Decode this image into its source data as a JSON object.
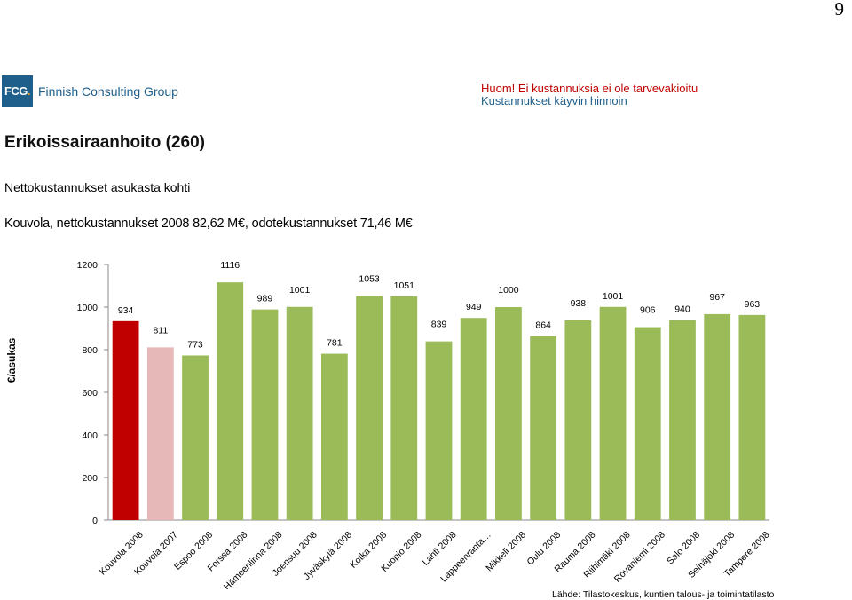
{
  "page_number": "9",
  "logo": {
    "mark": "FCG",
    "dot": ".",
    "name": "Finnish Consulting Group"
  },
  "notice": {
    "line1": "Huom! Ei kustannuksia ei ole tarvevakioitu",
    "line2": "Kustannukset käyvin hinnoin",
    "colors": {
      "line1": "#c00000",
      "line2": "#1f5f8b"
    }
  },
  "title": "Erikoissairaanhoito (260)",
  "subtitle": "Nettokustannukset asukasta kohti",
  "kouvola_line": "Kouvola, nettokustannukset 2008 82,62 M€, odotekustannukset 71,46 M€",
  "source": "Lähde: Tilastokeskus, kuntien talous- ja toimintatilasto",
  "chart_data": {
    "type": "bar",
    "ylabel": "€/asukas",
    "ylim": [
      0,
      1200
    ],
    "yticks": [
      0,
      200,
      400,
      600,
      800,
      1000,
      1200
    ],
    "grid": false,
    "categories": [
      "Kouvola 2008",
      "Kouvola 2007",
      "Espoo 2008",
      "Forssa 2008",
      "Hämeenlinna 2008",
      "Joensuu 2008",
      "Jyväskylä 2008",
      "Kotka 2008",
      "Kuopio 2008",
      "Lahti 2008",
      "Lappeenranta…",
      "Mikkeli 2008",
      "Oulu 2008",
      "Rauma 2008",
      "Riihimäki 2008",
      "Rovaniemi 2008",
      "Salo 2008",
      "Seinäjoki 2008",
      "Tampere 2008"
    ],
    "values": [
      934,
      811,
      773,
      1116,
      989,
      1001,
      781,
      1053,
      1051,
      839,
      949,
      1000,
      864,
      938,
      1001,
      906,
      940,
      967,
      963
    ],
    "colors": [
      "#c00000",
      "#e6b8b7",
      "#9bbb59",
      "#9bbb59",
      "#9bbb59",
      "#9bbb59",
      "#9bbb59",
      "#9bbb59",
      "#9bbb59",
      "#9bbb59",
      "#9bbb59",
      "#9bbb59",
      "#9bbb59",
      "#9bbb59",
      "#9bbb59",
      "#9bbb59",
      "#9bbb59",
      "#9bbb59",
      "#9bbb59"
    ]
  }
}
